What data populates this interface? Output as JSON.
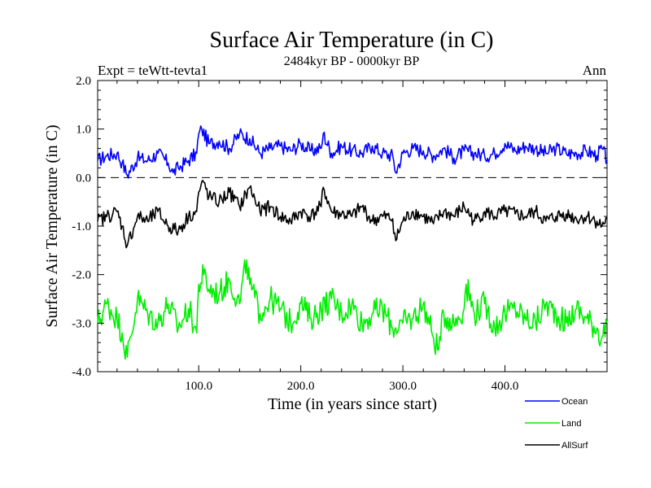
{
  "chart_data": {
    "type": "line",
    "title": "Surface Air Temperature (in C)",
    "subtitle": "2484kyr BP - 0000kyr BP",
    "expt_label": "Expt = teWtt-tevta1",
    "season_label": "Ann",
    "xlabel": "Time (in years since start)",
    "ylabel": "Surface Air Temperature (in C)",
    "xlim": [
      1,
      500
    ],
    "ylim": [
      -4.0,
      2.0
    ],
    "x_ticks": [
      100,
      200,
      300,
      400
    ],
    "x_tick_labels": [
      "100.0",
      "200.0",
      "300.0",
      "400.0"
    ],
    "y_ticks": [
      -4.0,
      -3.0,
      -2.0,
      -1.0,
      0.0,
      1.0,
      2.0
    ],
    "y_tick_labels": [
      "-4.0",
      "-3.0",
      "-2.0",
      "-1.0",
      "0.0",
      "1.0",
      "2.0"
    ],
    "reference_line": {
      "y": 0.0,
      "style": "dashed"
    },
    "legend_position": "bottom-right",
    "series": [
      {
        "name": "Ocean",
        "color": "#0000ff",
        "x": [
          1,
          10,
          20,
          25,
          30,
          40,
          50,
          60,
          70,
          75,
          80,
          90,
          98,
          100,
          103,
          110,
          120,
          130,
          140,
          150,
          160,
          170,
          180,
          190,
          200,
          210,
          220,
          222,
          230,
          240,
          250,
          260,
          270,
          280,
          290,
          293,
          300,
          310,
          320,
          330,
          340,
          350,
          360,
          370,
          380,
          390,
          400,
          410,
          420,
          430,
          440,
          450,
          460,
          470,
          480,
          490,
          495,
          500
        ],
        "values": [
          0.35,
          0.45,
          0.5,
          0.3,
          0.05,
          0.4,
          0.35,
          0.5,
          0.3,
          0.1,
          0.2,
          0.35,
          0.5,
          0.9,
          1.0,
          0.7,
          0.75,
          0.6,
          0.9,
          0.8,
          0.5,
          0.6,
          0.65,
          0.55,
          0.7,
          0.55,
          0.6,
          0.9,
          0.5,
          0.65,
          0.55,
          0.5,
          0.65,
          0.5,
          0.45,
          0.1,
          0.5,
          0.6,
          0.55,
          0.45,
          0.6,
          0.4,
          0.55,
          0.5,
          0.45,
          0.5,
          0.7,
          0.55,
          0.65,
          0.6,
          0.5,
          0.6,
          0.5,
          0.5,
          0.55,
          0.45,
          0.6,
          0.35
        ]
      },
      {
        "name": "Land",
        "color": "#00ee00",
        "x": [
          1,
          10,
          20,
          25,
          30,
          40,
          50,
          60,
          70,
          80,
          90,
          98,
          100,
          105,
          110,
          120,
          130,
          140,
          147,
          150,
          160,
          170,
          180,
          190,
          200,
          210,
          220,
          230,
          240,
          250,
          260,
          270,
          280,
          290,
          300,
          310,
          320,
          330,
          335,
          340,
          350,
          360,
          362,
          370,
          380,
          390,
          400,
          410,
          420,
          430,
          440,
          450,
          460,
          470,
          480,
          490,
          495,
          500
        ],
        "values": [
          -3.0,
          -2.6,
          -2.9,
          -3.2,
          -3.7,
          -2.5,
          -2.8,
          -3.0,
          -2.6,
          -3.1,
          -2.7,
          -3.2,
          -2.2,
          -2.0,
          -2.3,
          -2.4,
          -2.1,
          -2.6,
          -1.7,
          -2.2,
          -2.8,
          -2.5,
          -2.7,
          -3.0,
          -2.6,
          -2.9,
          -2.7,
          -2.5,
          -2.8,
          -2.6,
          -3.0,
          -2.8,
          -2.7,
          -3.1,
          -3.0,
          -2.9,
          -2.6,
          -3.3,
          -3.55,
          -2.8,
          -3.0,
          -2.7,
          -2.2,
          -2.8,
          -2.6,
          -3.1,
          -2.8,
          -2.7,
          -2.9,
          -3.0,
          -2.6,
          -2.8,
          -3.0,
          -2.7,
          -2.9,
          -3.1,
          -3.3,
          -3.0
        ]
      },
      {
        "name": "AllSurf",
        "color": "#000000",
        "x": [
          1,
          10,
          20,
          25,
          30,
          40,
          50,
          60,
          70,
          80,
          90,
          98,
          100,
          105,
          110,
          120,
          130,
          140,
          150,
          160,
          170,
          180,
          190,
          200,
          210,
          220,
          222,
          230,
          240,
          250,
          260,
          270,
          280,
          290,
          293,
          300,
          310,
          320,
          330,
          340,
          350,
          360,
          370,
          380,
          390,
          400,
          410,
          420,
          430,
          440,
          450,
          460,
          470,
          480,
          490,
          495,
          500
        ],
        "values": [
          -0.9,
          -0.8,
          -0.7,
          -1.0,
          -1.4,
          -0.8,
          -0.9,
          -0.7,
          -1.0,
          -1.1,
          -0.8,
          -0.7,
          -0.3,
          -0.1,
          -0.4,
          -0.5,
          -0.3,
          -0.6,
          -0.2,
          -0.7,
          -0.6,
          -0.8,
          -0.9,
          -0.7,
          -0.8,
          -0.6,
          -0.2,
          -0.7,
          -0.75,
          -0.8,
          -0.6,
          -0.9,
          -0.8,
          -0.85,
          -1.3,
          -0.9,
          -0.7,
          -0.8,
          -0.95,
          -0.7,
          -0.8,
          -0.6,
          -0.9,
          -0.7,
          -0.8,
          -0.7,
          -0.75,
          -0.8,
          -0.7,
          -0.9,
          -0.8,
          -0.75,
          -0.85,
          -0.8,
          -0.9,
          -1.0,
          -0.85
        ]
      }
    ]
  }
}
